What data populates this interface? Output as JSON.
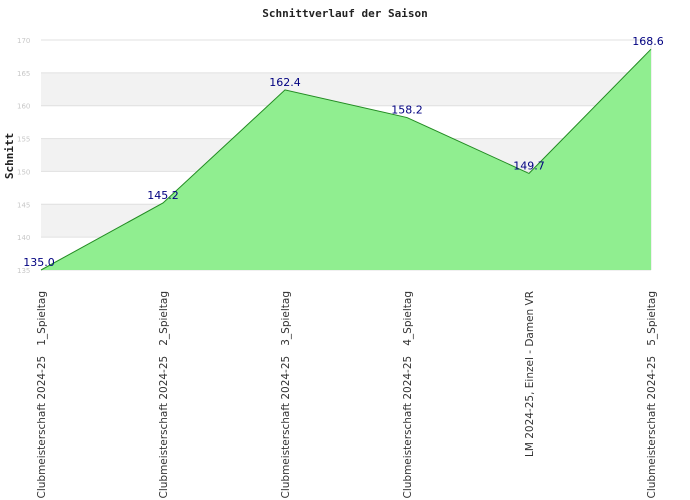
{
  "chart_data": {
    "type": "area",
    "title": "Schnittverlauf der Saison",
    "ylabel": "Schnitt",
    "xlabel": "",
    "ylim": [
      135,
      170
    ],
    "yticks": [
      135,
      140,
      145,
      150,
      155,
      160,
      165,
      170
    ],
    "grid": true,
    "legend": "none",
    "categories": [
      "Clubmeisterschaft 2024-25   1_Spieltag",
      "Clubmeisterschaft 2024-25   2_Spieltag",
      "Clubmeisterschaft 2024-25   3_Spieltag",
      "Clubmeisterschaft 2024-25   4_Spieltag",
      "LM 2024-25, Einzel - Damen VR",
      "Clubmeisterschaft 2024-25   5_Spieltag"
    ],
    "values": [
      135.0,
      145.2,
      162.4,
      158.2,
      149.7,
      168.6
    ],
    "value_labels": [
      "135.0",
      "145.2",
      "162.4",
      "158.2",
      "149.7",
      "168.6"
    ],
    "colors": {
      "fill": "#90ee90",
      "line": "#228b22",
      "band": "#f2f2f2",
      "grid": "#e0e0e0",
      "data_label": "#000080"
    }
  }
}
